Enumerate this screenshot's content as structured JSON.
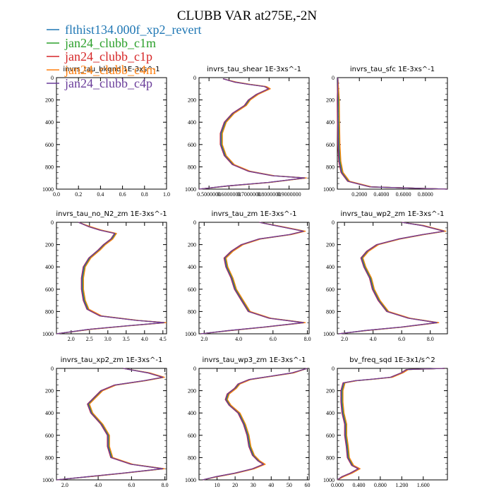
{
  "figure": {
    "title": "CLUBB VAR at275E,-2N"
  },
  "legend": [
    {
      "name": "flthist134.000f_xp2_revert",
      "color": "#1f77b4"
    },
    {
      "name": "jan24_clubb_c1m",
      "color": "#2ca02c"
    },
    {
      "name": "jan24_clubb_c1p",
      "color": "#d62728"
    },
    {
      "name": "jan24_clubb_c4m",
      "color": "#ff7f0e"
    },
    {
      "name": "jan24_clubb_c4p",
      "color": "#6a3d9a"
    }
  ],
  "chart_data": [
    {
      "type": "line",
      "title": "invrs_tau_bkgnd",
      "units": "1E-3xs^-1",
      "xlim": [
        0,
        1
      ],
      "ylim": [
        0,
        1000
      ],
      "xticks": [
        "0.0",
        "0.2",
        "0.4",
        "0.6",
        "0.8",
        "1.0"
      ],
      "yticks": [
        "0",
        "200",
        "400",
        "600",
        "800",
        "1000"
      ],
      "profile": []
    },
    {
      "type": "line",
      "title": "invrs_tau_shear",
      "units": "1E-3xs^-1",
      "xlim": [
        0.45,
        1.0
      ],
      "ylim": [
        0,
        1000
      ],
      "xticks": [
        "0.5000000",
        "0.6000000",
        "0.7000000",
        "0.8000000",
        "0.9000000"
      ],
      "yticks": [
        "0",
        "200",
        "400",
        "600",
        "800",
        "1000"
      ],
      "profile": [
        [
          0.57,
          10
        ],
        [
          0.63,
          40
        ],
        [
          0.7,
          60
        ],
        [
          0.78,
          80
        ],
        [
          0.8,
          100
        ],
        [
          0.74,
          150
        ],
        [
          0.7,
          200
        ],
        [
          0.68,
          250
        ],
        [
          0.62,
          320
        ],
        [
          0.58,
          400
        ],
        [
          0.56,
          500
        ],
        [
          0.56,
          600
        ],
        [
          0.58,
          700
        ],
        [
          0.62,
          780
        ],
        [
          0.7,
          840
        ],
        [
          0.82,
          880
        ],
        [
          0.98,
          900
        ],
        [
          0.8,
          940
        ],
        [
          0.6,
          970
        ],
        [
          0.45,
          1000
        ]
      ]
    },
    {
      "type": "line",
      "title": "invrs_tau_sfc",
      "units": "1E-3xs^-1",
      "xlim": [
        0,
        1
      ],
      "ylim": [
        0,
        1000
      ],
      "xticks": [
        "0.2000",
        "0.4000",
        "0.6000",
        "0.8000"
      ],
      "yticks": [
        "0",
        "200",
        "400",
        "600",
        "800",
        "1000"
      ],
      "profile": [
        [
          0.005,
          0
        ],
        [
          0.006,
          200
        ],
        [
          0.008,
          400
        ],
        [
          0.012,
          600
        ],
        [
          0.02,
          750
        ],
        [
          0.04,
          850
        ],
        [
          0.1,
          930
        ],
        [
          0.3,
          980
        ],
        [
          1.0,
          1000
        ]
      ]
    },
    {
      "type": "line",
      "title": "invrs_tau_no_N2_zm",
      "units": "1E-3xs^-1",
      "xlim": [
        1.6,
        4.6
      ],
      "ylim": [
        0,
        1000
      ],
      "xticks": [
        "2.0",
        "2.5",
        "3.0",
        "3.5",
        "4.0",
        "4.5"
      ],
      "yticks": [
        "0",
        "200",
        "400",
        "600",
        "800",
        "1000"
      ],
      "profile": [
        [
          2.2,
          0
        ],
        [
          2.5,
          40
        ],
        [
          2.8,
          70
        ],
        [
          3.2,
          100
        ],
        [
          3.1,
          150
        ],
        [
          2.9,
          200
        ],
        [
          2.75,
          250
        ],
        [
          2.5,
          320
        ],
        [
          2.35,
          400
        ],
        [
          2.3,
          500
        ],
        [
          2.3,
          600
        ],
        [
          2.35,
          700
        ],
        [
          2.45,
          780
        ],
        [
          2.8,
          840
        ],
        [
          3.8,
          880
        ],
        [
          4.55,
          900
        ],
        [
          3.5,
          930
        ],
        [
          2.5,
          960
        ],
        [
          1.6,
          1000
        ]
      ]
    },
    {
      "type": "line",
      "title": "invrs_tau_zm",
      "units": "1E-3xs^-1",
      "xlim": [
        1.7,
        8.1
      ],
      "ylim": [
        0,
        1000
      ],
      "xticks": [
        "2.0",
        "4.0",
        "6.0",
        "8.0"
      ],
      "yticks": [
        "0",
        "200",
        "400",
        "600",
        "800",
        "1000"
      ],
      "profile": [
        [
          5.2,
          0
        ],
        [
          6.5,
          40
        ],
        [
          7.8,
          80
        ],
        [
          7.0,
          110
        ],
        [
          5.2,
          150
        ],
        [
          4.2,
          200
        ],
        [
          3.6,
          260
        ],
        [
          3.2,
          320
        ],
        [
          3.3,
          400
        ],
        [
          3.6,
          500
        ],
        [
          3.8,
          600
        ],
        [
          4.2,
          700
        ],
        [
          4.6,
          800
        ],
        [
          5.8,
          860
        ],
        [
          7.8,
          900
        ],
        [
          5.5,
          940
        ],
        [
          3.5,
          970
        ],
        [
          1.8,
          1000
        ]
      ]
    },
    {
      "type": "line",
      "title": "invrs_tau_wp2_zm",
      "units": "1E-3xs^-1",
      "xlim": [
        1.5,
        9.2
      ],
      "ylim": [
        0,
        1000
      ],
      "xticks": [
        "2.0",
        "4.0",
        "6.0",
        "8.0"
      ],
      "yticks": [
        "0",
        "200",
        "400",
        "600",
        "800",
        "1000"
      ],
      "profile": [
        [
          6.0,
          0
        ],
        [
          7.5,
          30
        ],
        [
          9.0,
          80
        ],
        [
          7.5,
          110
        ],
        [
          5.8,
          150
        ],
        [
          4.3,
          200
        ],
        [
          3.6,
          260
        ],
        [
          3.2,
          320
        ],
        [
          3.4,
          400
        ],
        [
          3.8,
          500
        ],
        [
          4.0,
          600
        ],
        [
          4.4,
          700
        ],
        [
          5.0,
          800
        ],
        [
          6.5,
          860
        ],
        [
          8.5,
          900
        ],
        [
          6.0,
          940
        ],
        [
          3.5,
          970
        ],
        [
          1.6,
          1000
        ]
      ]
    },
    {
      "type": "line",
      "title": "invrs_tau_xp2_zm",
      "units": "1E-3xs^-1",
      "xlim": [
        1.5,
        8.1
      ],
      "ylim": [
        0,
        1000
      ],
      "xticks": [
        "2.0",
        "4.0",
        "6.0",
        "8.0"
      ],
      "yticks": [
        "0",
        "200",
        "400",
        "600",
        "800",
        "1000"
      ],
      "profile": [
        [
          5.5,
          0
        ],
        [
          7.0,
          40
        ],
        [
          7.9,
          80
        ],
        [
          6.8,
          110
        ],
        [
          5.0,
          150
        ],
        [
          4.2,
          200
        ],
        [
          3.8,
          260
        ],
        [
          3.4,
          320
        ],
        [
          3.6,
          400
        ],
        [
          4.2,
          500
        ],
        [
          4.6,
          600
        ],
        [
          4.6,
          700
        ],
        [
          4.8,
          800
        ],
        [
          6.0,
          860
        ],
        [
          7.9,
          900
        ],
        [
          5.5,
          940
        ],
        [
          3.5,
          970
        ],
        [
          1.5,
          1000
        ]
      ]
    },
    {
      "type": "line",
      "title": "invrs_tau_wp3_zm",
      "units": "1E-3xs^-1",
      "xlim": [
        0,
        61
      ],
      "ylim": [
        0,
        1000
      ],
      "xticks": [
        "10",
        "20",
        "30",
        "40",
        "50",
        "60"
      ],
      "yticks": [
        "0",
        "200",
        "400",
        "600",
        "800",
        "1000"
      ],
      "profile": [
        [
          60,
          0
        ],
        [
          52,
          40
        ],
        [
          40,
          70
        ],
        [
          28,
          100
        ],
        [
          22,
          140
        ],
        [
          20,
          180
        ],
        [
          16,
          230
        ],
        [
          15,
          280
        ],
        [
          17,
          330
        ],
        [
          22,
          400
        ],
        [
          25,
          500
        ],
        [
          27,
          600
        ],
        [
          28,
          700
        ],
        [
          30,
          780
        ],
        [
          33,
          830
        ],
        [
          36,
          860
        ],
        [
          30,
          900
        ],
        [
          20,
          940
        ],
        [
          10,
          970
        ],
        [
          2,
          1000
        ]
      ]
    },
    {
      "type": "line",
      "title": "bv_freq_sqd",
      "units": "1E-3x1/s^2",
      "xlim": [
        0,
        2.05
      ],
      "ylim": [
        0,
        1000
      ],
      "xticks": [
        "0.000",
        "0.400",
        "0.800",
        "1.200",
        "1.600"
      ],
      "yticks": [
        "0",
        "200",
        "400",
        "600",
        "800",
        "1000"
      ],
      "profile": [
        [
          2.0,
          0
        ],
        [
          1.3,
          10
        ],
        [
          1.2,
          40
        ],
        [
          1.0,
          80
        ],
        [
          0.7,
          95
        ],
        [
          0.35,
          110
        ],
        [
          0.12,
          130
        ],
        [
          0.08,
          200
        ],
        [
          0.08,
          300
        ],
        [
          0.1,
          400
        ],
        [
          0.15,
          500
        ],
        [
          0.15,
          600
        ],
        [
          0.18,
          700
        ],
        [
          0.2,
          800
        ],
        [
          0.28,
          870
        ],
        [
          0.4,
          900
        ],
        [
          0.25,
          940
        ],
        [
          0.1,
          970
        ],
        [
          0.0,
          1000
        ]
      ]
    }
  ]
}
